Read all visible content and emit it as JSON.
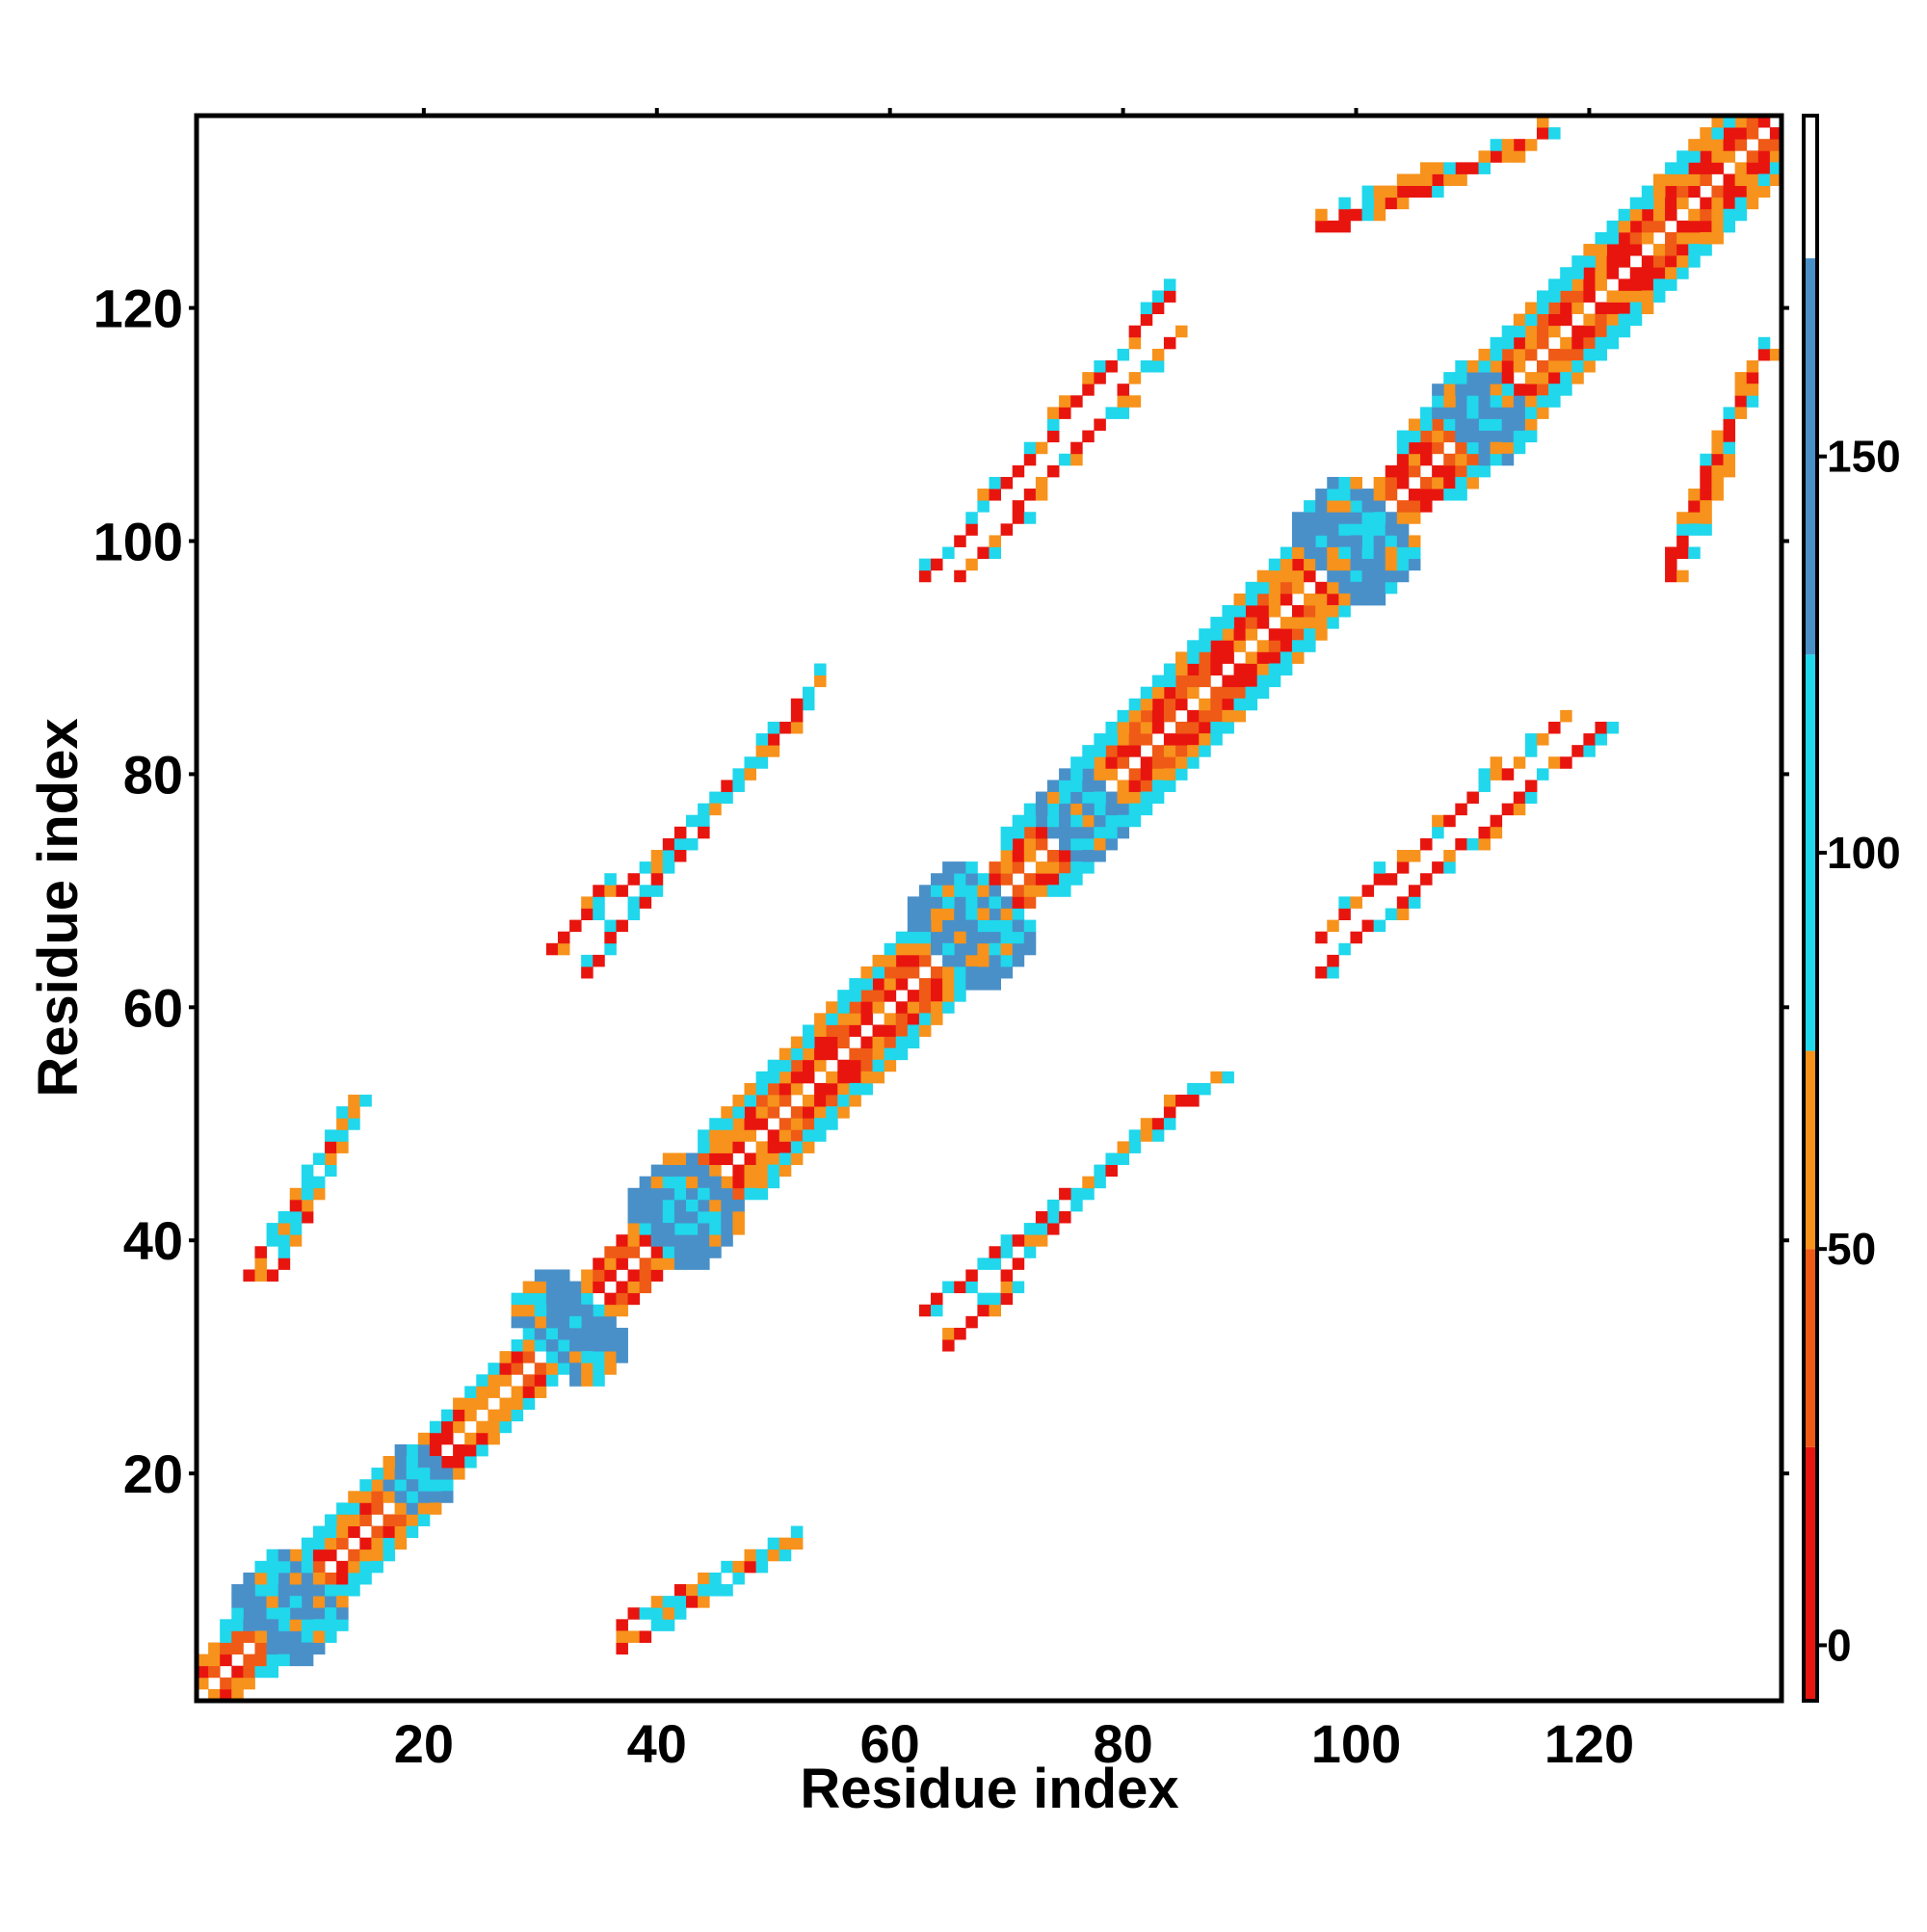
{
  "chart_data": {
    "type": "heatmap",
    "title": "",
    "xlabel": "Residue index",
    "ylabel": "Residue index",
    "xlim": [
      1,
      136
    ],
    "ylim": [
      1,
      136
    ],
    "grid": false,
    "legend": "colorbar-right",
    "x_ticks": [
      20,
      40,
      60,
      80,
      100,
      120
    ],
    "y_ticks": [
      20,
      40,
      60,
      80,
      100,
      120
    ],
    "colorbar": {
      "ticks": [
        0,
        50,
        100,
        150
      ],
      "range": [
        -7,
        193
      ],
      "bands": [
        {
          "from": -7,
          "to": 25,
          "color": "#e8150f"
        },
        {
          "from": 25,
          "to": 50,
          "color": "#ef5a16"
        },
        {
          "from": 50,
          "to": 75,
          "color": "#f7921c"
        },
        {
          "from": 75,
          "to": 125,
          "color": "#20d7ec"
        },
        {
          "from": 125,
          "to": 175,
          "color": "#4a90c8"
        },
        {
          "from": 175,
          "to": 193,
          "color": "#ffffff"
        }
      ]
    },
    "palette": {
      "red": "#e8150f",
      "orange": "#f7921c",
      "dark_orange": "#ef5a16",
      "cyan": "#20d7ec",
      "blue": "#4a90c8"
    },
    "regions": [
      {
        "kind": "diagonal",
        "from": 1,
        "to": 136,
        "value": 40
      },
      {
        "kind": "band",
        "i0": 3,
        "i1": 16,
        "offset": 3,
        "width": 2,
        "value": 100
      },
      {
        "kind": "band",
        "i0": 16,
        "i1": 28,
        "offset": 3,
        "width": 1,
        "value": 100
      },
      {
        "kind": "band",
        "i0": 44,
        "i1": 62,
        "offset": 4,
        "width": 2,
        "value": 100
      },
      {
        "kind": "band",
        "i0": 70,
        "i1": 96,
        "offset": 4,
        "width": 2,
        "value": 100
      },
      {
        "kind": "band",
        "i0": 104,
        "i1": 136,
        "offset": 4,
        "width": 2,
        "value": 100
      },
      {
        "kind": "blob",
        "cx": 8,
        "cy": 9,
        "r": 4,
        "value": 140
      },
      {
        "kind": "blob",
        "cx": 19,
        "cy": 20,
        "r": 2,
        "value": 140
      },
      {
        "kind": "blob",
        "cx": 31,
        "cy": 34,
        "r": 3,
        "value": 140
      },
      {
        "kind": "blob",
        "cx": 42,
        "cy": 43,
        "r": 4,
        "value": 140
      },
      {
        "kind": "blob",
        "cx": 66,
        "cy": 68,
        "r": 4,
        "value": 140
      },
      {
        "kind": "blob",
        "cx": 76,
        "cy": 77,
        "r": 3,
        "value": 140
      },
      {
        "kind": "blob",
        "cx": 99,
        "cy": 101,
        "r": 4,
        "value": 140
      },
      {
        "kind": "blob",
        "cx": 110,
        "cy": 112,
        "r": 3,
        "value": 140
      },
      {
        "kind": "antidiag",
        "i0": 37,
        "i1": 49,
        "j0": 7,
        "j1": 13,
        "value": 10
      },
      {
        "kind": "antidiag",
        "i0": 5,
        "i1": 14,
        "j0": 37,
        "j1": 52,
        "value": 10
      },
      {
        "kind": "antidiag",
        "i0": 31,
        "i1": 36,
        "j0": 65,
        "j1": 71,
        "value": 10
      },
      {
        "kind": "antidiag",
        "i0": 37,
        "i1": 53,
        "j0": 70,
        "j1": 86,
        "value": 10
      },
      {
        "kind": "antidiag",
        "i0": 63,
        "i1": 88,
        "j0": 34,
        "j1": 54,
        "value": 10
      },
      {
        "kind": "antidiag",
        "i0": 66,
        "i1": 85,
        "j0": 97,
        "j1": 118,
        "value": 10
      },
      {
        "kind": "antidiag",
        "i0": 97,
        "i1": 121,
        "j0": 63,
        "j1": 84,
        "value": 10
      },
      {
        "kind": "antidiag",
        "i0": 98,
        "i1": 117,
        "j0": 127,
        "j1": 135,
        "value": 10
      },
      {
        "kind": "antidiag",
        "i0": 127,
        "i1": 135,
        "j0": 97,
        "j1": 117,
        "value": 10
      }
    ]
  }
}
